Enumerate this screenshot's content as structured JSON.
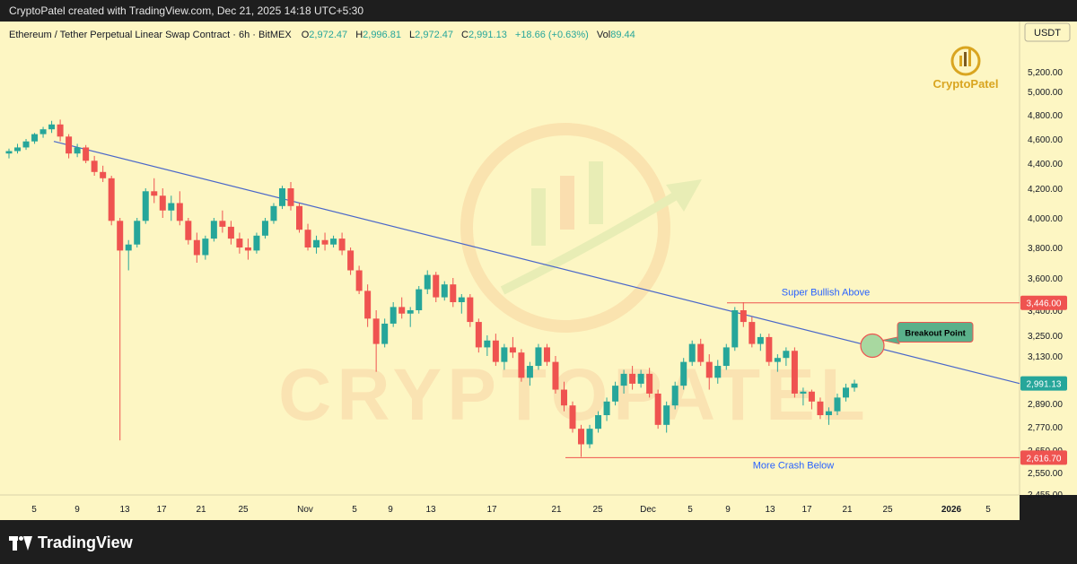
{
  "header": {
    "credit": "CryptoPatel created with TradingView.com, Dec 21, 2025 14:18 UTC+5:30"
  },
  "footer": {
    "brand": "TradingView"
  },
  "legend": {
    "symbol": "Ethereum / Tether Perpetual Linear Swap Contract · 6h · BitMEX",
    "o_label": "O",
    "o_value": "2,972.47",
    "h_label": "H",
    "h_value": "2,996.81",
    "l_label": "L",
    "l_value": "2,972.47",
    "c_label": "C",
    "c_value": "2,991.13",
    "change": "+18.66 (+0.63%)",
    "vol_label": "Vol",
    "vol_value": "89.44"
  },
  "watermark": {
    "logo_text": "CryptoPatel",
    "big_text": "CRYPTOPATEL"
  },
  "colors": {
    "background": "#fdf6c3",
    "up": "#26a69a",
    "down": "#ef5350",
    "trendline": "#4a67c9",
    "annotation_text": "#2962ff",
    "level_line": "#ef5350",
    "price_tag_last": "#26a69a",
    "price_tag_level": "#ef5350",
    "breakout_box": "#5ab08a"
  },
  "chart_data": {
    "type": "candlestick",
    "currency": "USDT",
    "timeframe": "6h",
    "y_ticks": [
      "5,200.00",
      "5,000.00",
      "4,800.00",
      "4,600.00",
      "4,400.00",
      "4,200.00",
      "4,000.00",
      "3,800.00",
      "3,600.00",
      "3,400.00",
      "3,250.00",
      "3,130.00",
      "2,890.00",
      "2,770.00",
      "2,650.00",
      "2,550.00",
      "2,455.00"
    ],
    "y_tick_values": [
      5200,
      5000,
      4800,
      4600,
      4400,
      4200,
      4000,
      3800,
      3600,
      3400,
      3250,
      3130,
      2890,
      2770,
      2650,
      2550,
      2455
    ],
    "x_ticks": [
      "5",
      "9",
      "13",
      "17",
      "21",
      "25",
      "Nov",
      "5",
      "9",
      "13",
      "17",
      "21",
      "25",
      "Dec",
      "5",
      "9",
      "13",
      "17",
      "21",
      "25",
      "2026",
      "5"
    ],
    "price_tags": [
      {
        "label": "3,446.00",
        "value": 3446,
        "kind": "level"
      },
      {
        "label": "2,991.13",
        "value": 2991.13,
        "kind": "last"
      },
      {
        "label": "2,616.70",
        "value": 2616.7,
        "kind": "level"
      }
    ],
    "levels": [
      {
        "value": 3446,
        "label": "Super Bullish Above"
      },
      {
        "value": 2616.7,
        "label": "More Crash Below"
      }
    ],
    "trendline": {
      "start_date": "Oct 7, 2025",
      "start_value": 4580,
      "end_date": "Jan 7, 2026",
      "end_value": 2991
    },
    "annotation": {
      "label": "Breakout Point",
      "date": "Dec 22, 2025",
      "value": 3190
    },
    "candles": [
      {
        "o": 4480,
        "h": 4520,
        "l": 4440,
        "c": 4500
      },
      {
        "o": 4500,
        "h": 4560,
        "l": 4480,
        "c": 4530
      },
      {
        "o": 4530,
        "h": 4600,
        "l": 4510,
        "c": 4580
      },
      {
        "o": 4580,
        "h": 4650,
        "l": 4560,
        "c": 4640
      },
      {
        "o": 4640,
        "h": 4700,
        "l": 4610,
        "c": 4680
      },
      {
        "o": 4680,
        "h": 4750,
        "l": 4650,
        "c": 4720
      },
      {
        "o": 4720,
        "h": 4760,
        "l": 4580,
        "c": 4620
      },
      {
        "o": 4620,
        "h": 4640,
        "l": 4440,
        "c": 4480
      },
      {
        "o": 4480,
        "h": 4560,
        "l": 4450,
        "c": 4530
      },
      {
        "o": 4530,
        "h": 4550,
        "l": 4400,
        "c": 4420
      },
      {
        "o": 4420,
        "h": 4460,
        "l": 4300,
        "c": 4330
      },
      {
        "o": 4330,
        "h": 4380,
        "l": 4250,
        "c": 4280
      },
      {
        "o": 4280,
        "h": 4300,
        "l": 3950,
        "c": 3980
      },
      {
        "o": 3980,
        "h": 4000,
        "l": 2700,
        "c": 3780
      },
      {
        "o": 3780,
        "h": 3850,
        "l": 3650,
        "c": 3820
      },
      {
        "o": 3820,
        "h": 4000,
        "l": 3800,
        "c": 3980
      },
      {
        "o": 3980,
        "h": 4200,
        "l": 3960,
        "c": 4180
      },
      {
        "o": 4180,
        "h": 4280,
        "l": 4100,
        "c": 4150
      },
      {
        "o": 4150,
        "h": 4200,
        "l": 4000,
        "c": 4050
      },
      {
        "o": 4050,
        "h": 4150,
        "l": 3980,
        "c": 4100
      },
      {
        "o": 4100,
        "h": 4180,
        "l": 3950,
        "c": 3980
      },
      {
        "o": 3980,
        "h": 4000,
        "l": 3820,
        "c": 3850
      },
      {
        "o": 3850,
        "h": 3900,
        "l": 3700,
        "c": 3750
      },
      {
        "o": 3750,
        "h": 3880,
        "l": 3720,
        "c": 3860
      },
      {
        "o": 3860,
        "h": 4000,
        "l": 3840,
        "c": 3980
      },
      {
        "o": 3980,
        "h": 4050,
        "l": 3900,
        "c": 3940
      },
      {
        "o": 3940,
        "h": 3980,
        "l": 3820,
        "c": 3860
      },
      {
        "o": 3860,
        "h": 3900,
        "l": 3760,
        "c": 3800
      },
      {
        "o": 3800,
        "h": 3860,
        "l": 3720,
        "c": 3780
      },
      {
        "o": 3780,
        "h": 3900,
        "l": 3760,
        "c": 3880
      },
      {
        "o": 3880,
        "h": 4000,
        "l": 3860,
        "c": 3980
      },
      {
        "o": 3980,
        "h": 4100,
        "l": 3960,
        "c": 4080
      },
      {
        "o": 4080,
        "h": 4220,
        "l": 4060,
        "c": 4200
      },
      {
        "o": 4200,
        "h": 4250,
        "l": 4050,
        "c": 4080
      },
      {
        "o": 4080,
        "h": 4100,
        "l": 3900,
        "c": 3920
      },
      {
        "o": 3920,
        "h": 3960,
        "l": 3780,
        "c": 3800
      },
      {
        "o": 3800,
        "h": 3880,
        "l": 3760,
        "c": 3850
      },
      {
        "o": 3850,
        "h": 3900,
        "l": 3780,
        "c": 3820
      },
      {
        "o": 3820,
        "h": 3880,
        "l": 3800,
        "c": 3860
      },
      {
        "o": 3860,
        "h": 3900,
        "l": 3750,
        "c": 3780
      },
      {
        "o": 3780,
        "h": 3800,
        "l": 3620,
        "c": 3650
      },
      {
        "o": 3650,
        "h": 3680,
        "l": 3500,
        "c": 3520
      },
      {
        "o": 3520,
        "h": 3560,
        "l": 3300,
        "c": 3350
      },
      {
        "o": 3350,
        "h": 3400,
        "l": 3050,
        "c": 3200
      },
      {
        "o": 3200,
        "h": 3350,
        "l": 3180,
        "c": 3320
      },
      {
        "o": 3320,
        "h": 3450,
        "l": 3300,
        "c": 3420
      },
      {
        "o": 3420,
        "h": 3480,
        "l": 3350,
        "c": 3380
      },
      {
        "o": 3380,
        "h": 3420,
        "l": 3300,
        "c": 3400
      },
      {
        "o": 3400,
        "h": 3550,
        "l": 3380,
        "c": 3530
      },
      {
        "o": 3530,
        "h": 3650,
        "l": 3500,
        "c": 3620
      },
      {
        "o": 3620,
        "h": 3640,
        "l": 3450,
        "c": 3480
      },
      {
        "o": 3480,
        "h": 3580,
        "l": 3460,
        "c": 3560
      },
      {
        "o": 3560,
        "h": 3600,
        "l": 3420,
        "c": 3450
      },
      {
        "o": 3450,
        "h": 3500,
        "l": 3380,
        "c": 3480
      },
      {
        "o": 3480,
        "h": 3500,
        "l": 3300,
        "c": 3330
      },
      {
        "o": 3330,
        "h": 3350,
        "l": 3150,
        "c": 3180
      },
      {
        "o": 3180,
        "h": 3250,
        "l": 3130,
        "c": 3220
      },
      {
        "o": 3220,
        "h": 3260,
        "l": 3080,
        "c": 3100
      },
      {
        "o": 3100,
        "h": 3200,
        "l": 3060,
        "c": 3180
      },
      {
        "o": 3180,
        "h": 3240,
        "l": 3120,
        "c": 3150
      },
      {
        "o": 3150,
        "h": 3170,
        "l": 3000,
        "c": 3020
      },
      {
        "o": 3020,
        "h": 3100,
        "l": 2980,
        "c": 3080
      },
      {
        "o": 3080,
        "h": 3200,
        "l": 3060,
        "c": 3180
      },
      {
        "o": 3180,
        "h": 3200,
        "l": 3080,
        "c": 3100
      },
      {
        "o": 3100,
        "h": 3130,
        "l": 2940,
        "c": 2960
      },
      {
        "o": 2960,
        "h": 3000,
        "l": 2850,
        "c": 2880
      },
      {
        "o": 2880,
        "h": 2900,
        "l": 2740,
        "c": 2760
      },
      {
        "o": 2760,
        "h": 2780,
        "l": 2620,
        "c": 2680
      },
      {
        "o": 2680,
        "h": 2780,
        "l": 2660,
        "c": 2760
      },
      {
        "o": 2760,
        "h": 2850,
        "l": 2740,
        "c": 2830
      },
      {
        "o": 2830,
        "h": 2920,
        "l": 2800,
        "c": 2900
      },
      {
        "o": 2900,
        "h": 3000,
        "l": 2880,
        "c": 2980
      },
      {
        "o": 2980,
        "h": 3060,
        "l": 2940,
        "c": 3040
      },
      {
        "o": 3040,
        "h": 3080,
        "l": 2960,
        "c": 2990
      },
      {
        "o": 2990,
        "h": 3060,
        "l": 2970,
        "c": 3040
      },
      {
        "o": 3040,
        "h": 3070,
        "l": 2920,
        "c": 2940
      },
      {
        "o": 2940,
        "h": 2960,
        "l": 2760,
        "c": 2780
      },
      {
        "o": 2780,
        "h": 2900,
        "l": 2740,
        "c": 2880
      },
      {
        "o": 2880,
        "h": 3000,
        "l": 2860,
        "c": 2980
      },
      {
        "o": 2980,
        "h": 3120,
        "l": 2960,
        "c": 3100
      },
      {
        "o": 3100,
        "h": 3220,
        "l": 3080,
        "c": 3200
      },
      {
        "o": 3200,
        "h": 3230,
        "l": 3080,
        "c": 3100
      },
      {
        "o": 3100,
        "h": 3140,
        "l": 2960,
        "c": 3020
      },
      {
        "o": 3020,
        "h": 3110,
        "l": 2990,
        "c": 3080
      },
      {
        "o": 3080,
        "h": 3200,
        "l": 3060,
        "c": 3180
      },
      {
        "o": 3180,
        "h": 3420,
        "l": 3160,
        "c": 3400
      },
      {
        "o": 3400,
        "h": 3450,
        "l": 3300,
        "c": 3330
      },
      {
        "o": 3330,
        "h": 3360,
        "l": 3180,
        "c": 3200
      },
      {
        "o": 3200,
        "h": 3260,
        "l": 3160,
        "c": 3240
      },
      {
        "o": 3240,
        "h": 3260,
        "l": 3080,
        "c": 3100
      },
      {
        "o": 3100,
        "h": 3140,
        "l": 3050,
        "c": 3120
      },
      {
        "o": 3120,
        "h": 3180,
        "l": 3080,
        "c": 3160
      },
      {
        "o": 3160,
        "h": 3180,
        "l": 2920,
        "c": 2940
      },
      {
        "o": 2940,
        "h": 2970,
        "l": 2880,
        "c": 2950
      },
      {
        "o": 2950,
        "h": 2960,
        "l": 2860,
        "c": 2900
      },
      {
        "o": 2900,
        "h": 2920,
        "l": 2810,
        "c": 2830
      },
      {
        "o": 2830,
        "h": 2870,
        "l": 2780,
        "c": 2850
      },
      {
        "o": 2850,
        "h": 2940,
        "l": 2830,
        "c": 2920
      },
      {
        "o": 2920,
        "h": 2990,
        "l": 2900,
        "c": 2970
      },
      {
        "o": 2970,
        "h": 3010,
        "l": 2950,
        "c": 2991
      }
    ]
  }
}
